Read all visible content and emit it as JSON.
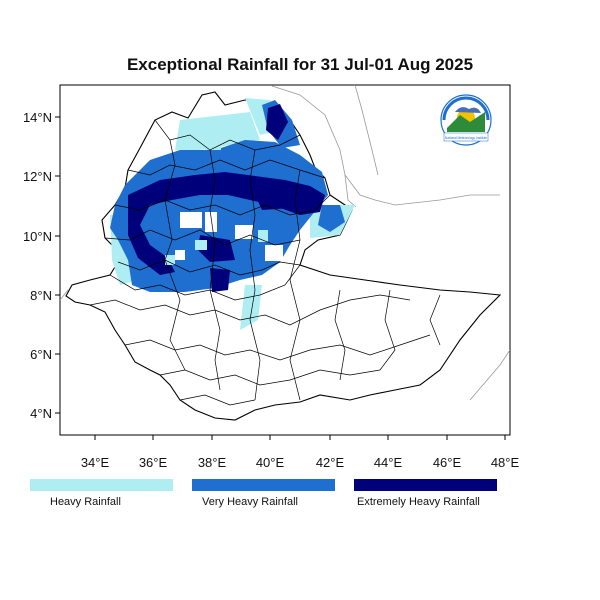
{
  "title": "Exceptional Rainfall for 31 Jul-01 Aug 2025",
  "axes": {
    "x_ticks": [
      "34°E",
      "36°E",
      "38°E",
      "40°E",
      "42°E",
      "44°E",
      "46°E",
      "48°E"
    ],
    "y_ticks": [
      "14°N",
      "12°N",
      "10°N",
      "8°N",
      "6°N",
      "4°N"
    ]
  },
  "legend": [
    {
      "label": "Heavy Rainfall",
      "color": "#aeeef2"
    },
    {
      "label": "Very Heavy Rainfall",
      "color": "#1e6fd0"
    },
    {
      "label": "Extremely Heavy Rainfall",
      "color": "#00007a"
    }
  ],
  "colors": {
    "heavy": "#aeeef2",
    "very_heavy": "#1e6fd0",
    "extreme": "#00007a",
    "boundary": "#000000",
    "neighbor_boundary": "#999999"
  },
  "logo": {
    "text": "National Meteorology Institute"
  }
}
